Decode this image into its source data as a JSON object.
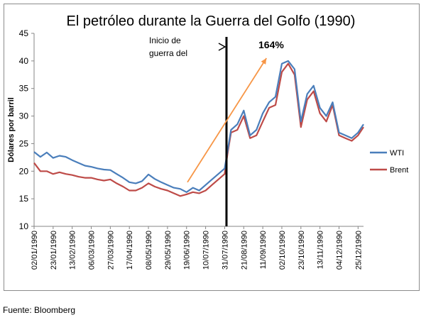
{
  "chart_data": {
    "type": "line",
    "title": "El petróleo durante la Guerra del Golfo (1990)",
    "ylabel": "Dólares por barril",
    "xlabel": "",
    "ylim": [
      10,
      45
    ],
    "yticks": [
      "10",
      "15",
      "20",
      "25",
      "30",
      "35",
      "40",
      "45"
    ],
    "xticks": [
      "02/01/1990",
      "23/01/1990",
      "13/02/1990",
      "06/03/1990",
      "27/03/1990",
      "17/04/1990",
      "08/05/1990",
      "29/05/1990",
      "19/06/1990",
      "10/07/1990",
      "31/07/1990",
      "21/08/1990",
      "11/09/1990",
      "02/10/1990",
      "23/10/1990",
      "13/11/1990",
      "04/12/1990",
      "25/12/1990"
    ],
    "x_range": [
      "1990-01-02",
      "1990-12-31"
    ],
    "legend_position": "right",
    "grid": false,
    "series": [
      {
        "name": "WTI",
        "color": "#4a7ebb",
        "x": [
          "1990-01-02",
          "1990-01-09",
          "1990-01-16",
          "1990-01-23",
          "1990-01-30",
          "1990-02-06",
          "1990-02-13",
          "1990-02-20",
          "1990-02-27",
          "1990-03-06",
          "1990-03-13",
          "1990-03-20",
          "1990-03-27",
          "1990-04-03",
          "1990-04-10",
          "1990-04-17",
          "1990-04-24",
          "1990-05-01",
          "1990-05-08",
          "1990-05-15",
          "1990-05-22",
          "1990-05-29",
          "1990-06-05",
          "1990-06-12",
          "1990-06-19",
          "1990-06-26",
          "1990-07-03",
          "1990-07-10",
          "1990-07-17",
          "1990-07-24",
          "1990-07-31",
          "1990-08-03",
          "1990-08-07",
          "1990-08-14",
          "1990-08-21",
          "1990-08-28",
          "1990-09-04",
          "1990-09-11",
          "1990-09-18",
          "1990-09-25",
          "1990-10-02",
          "1990-10-09",
          "1990-10-16",
          "1990-10-23",
          "1990-10-30",
          "1990-11-06",
          "1990-11-13",
          "1990-11-20",
          "1990-11-27",
          "1990-12-04",
          "1990-12-11",
          "1990-12-18",
          "1990-12-25",
          "1990-12-31"
        ],
        "values": [
          23.5,
          22.6,
          23.4,
          22.4,
          22.8,
          22.6,
          22.0,
          21.5,
          21.0,
          20.8,
          20.5,
          20.3,
          20.2,
          19.5,
          18.8,
          18.0,
          17.8,
          18.2,
          19.4,
          18.6,
          18.0,
          17.5,
          17.0,
          16.8,
          16.2,
          17.0,
          16.5,
          17.5,
          18.5,
          19.5,
          20.5,
          23.5,
          27.5,
          28.5,
          31.0,
          26.5,
          27.5,
          30.5,
          32.5,
          33.5,
          39.5,
          40.0,
          38.5,
          29.0,
          34.0,
          35.5,
          31.5,
          30.0,
          32.5,
          27.0,
          26.5,
          26.0,
          27.0,
          28.5
        ]
      },
      {
        "name": "Brent",
        "color": "#be4b48",
        "x": [
          "1990-01-02",
          "1990-01-09",
          "1990-01-16",
          "1990-01-23",
          "1990-01-30",
          "1990-02-06",
          "1990-02-13",
          "1990-02-20",
          "1990-02-27",
          "1990-03-06",
          "1990-03-13",
          "1990-03-20",
          "1990-03-27",
          "1990-04-03",
          "1990-04-10",
          "1990-04-17",
          "1990-04-24",
          "1990-05-01",
          "1990-05-08",
          "1990-05-15",
          "1990-05-22",
          "1990-05-29",
          "1990-06-05",
          "1990-06-12",
          "1990-06-19",
          "1990-06-26",
          "1990-07-03",
          "1990-07-10",
          "1990-07-17",
          "1990-07-24",
          "1990-07-31",
          "1990-08-03",
          "1990-08-07",
          "1990-08-14",
          "1990-08-21",
          "1990-08-28",
          "1990-09-04",
          "1990-09-11",
          "1990-09-18",
          "1990-09-25",
          "1990-10-02",
          "1990-10-09",
          "1990-10-16",
          "1990-10-23",
          "1990-10-30",
          "1990-11-06",
          "1990-11-13",
          "1990-11-20",
          "1990-11-27",
          "1990-12-04",
          "1990-12-11",
          "1990-12-18",
          "1990-12-25",
          "1990-12-31"
        ],
        "values": [
          21.5,
          20.0,
          20.0,
          19.5,
          19.8,
          19.5,
          19.3,
          19.0,
          18.8,
          18.8,
          18.5,
          18.3,
          18.5,
          17.8,
          17.2,
          16.5,
          16.5,
          17.0,
          17.8,
          17.2,
          16.8,
          16.5,
          16.0,
          15.5,
          15.8,
          16.2,
          16.0,
          16.5,
          17.5,
          18.5,
          19.5,
          23.0,
          27.0,
          27.5,
          30.0,
          26.0,
          26.5,
          29.0,
          31.5,
          32.0,
          38.0,
          39.5,
          37.5,
          28.0,
          33.0,
          34.5,
          30.5,
          29.0,
          32.0,
          26.5,
          26.0,
          25.5,
          26.5,
          28.0
        ]
      }
    ],
    "annotations": {
      "event_label": "Inicio de guerra del",
      "event_label_lines": [
        "Inicio de",
        "guerra del"
      ],
      "event_date": "1990-08-02",
      "percent_label": "164%",
      "arrow_from": {
        "x": "1990-06-20",
        "y": 18.0
      },
      "arrow_to": {
        "x": "1990-09-15",
        "y": 40.5
      }
    }
  },
  "source": "Fuente: Bloomberg"
}
